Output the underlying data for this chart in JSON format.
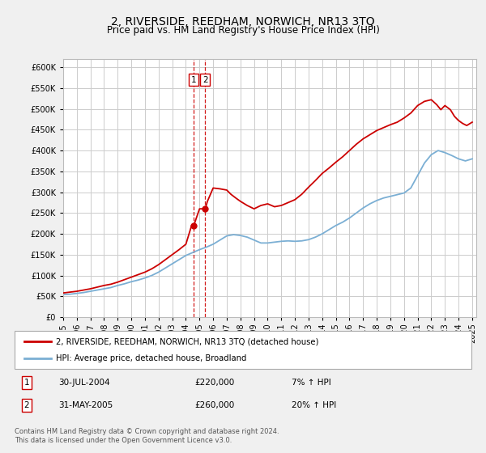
{
  "title": "2, RIVERSIDE, REEDHAM, NORWICH, NR13 3TQ",
  "subtitle": "Price paid vs. HM Land Registry's House Price Index (HPI)",
  "legend_line1": "2, RIVERSIDE, REEDHAM, NORWICH, NR13 3TQ (detached house)",
  "legend_line2": "HPI: Average price, detached house, Broadland",
  "transaction1_label": "1",
  "transaction1_date": "30-JUL-2004",
  "transaction1_price": "£220,000",
  "transaction1_hpi": "7% ↑ HPI",
  "transaction2_label": "2",
  "transaction2_date": "31-MAY-2005",
  "transaction2_price": "£260,000",
  "transaction2_hpi": "20% ↑ HPI",
  "footer": "Contains HM Land Registry data © Crown copyright and database right 2024.\nThis data is licensed under the Open Government Licence v3.0.",
  "red_color": "#cc0000",
  "blue_color": "#7bafd4",
  "background_color": "#f0f0f0",
  "plot_bg_color": "#ffffff",
  "grid_color": "#cccccc",
  "ylim": [
    0,
    620000
  ],
  "yticks": [
    0,
    50000,
    100000,
    150000,
    200000,
    250000,
    300000,
    350000,
    400000,
    450000,
    500000,
    550000,
    600000
  ],
  "hpi_years": [
    1995,
    1995.5,
    1996,
    1996.5,
    1997,
    1997.5,
    1998,
    1998.5,
    1999,
    1999.5,
    2000,
    2000.5,
    2001,
    2001.5,
    2002,
    2002.5,
    2003,
    2003.5,
    2004,
    2004.5,
    2005,
    2005.5,
    2006,
    2006.5,
    2007,
    2007.5,
    2008,
    2008.5,
    2009,
    2009.5,
    2010,
    2010.5,
    2011,
    2011.5,
    2012,
    2012.5,
    2013,
    2013.5,
    2014,
    2014.5,
    2015,
    2015.5,
    2016,
    2016.5,
    2017,
    2017.5,
    2018,
    2018.5,
    2019,
    2019.5,
    2020,
    2020.5,
    2021,
    2021.5,
    2022,
    2022.5,
    2023,
    2023.5,
    2024,
    2024.5,
    2025
  ],
  "hpi_values": [
    54000,
    55000,
    57000,
    59000,
    62000,
    65000,
    68000,
    71000,
    76000,
    80000,
    85000,
    89000,
    94000,
    100000,
    108000,
    118000,
    128000,
    138000,
    148000,
    155000,
    162000,
    168000,
    175000,
    185000,
    195000,
    198000,
    196000,
    192000,
    185000,
    178000,
    178000,
    180000,
    182000,
    183000,
    182000,
    183000,
    186000,
    192000,
    200000,
    210000,
    220000,
    228000,
    238000,
    250000,
    262000,
    272000,
    280000,
    286000,
    290000,
    294000,
    298000,
    310000,
    340000,
    370000,
    390000,
    400000,
    395000,
    388000,
    380000,
    375000,
    380000
  ],
  "red_years": [
    1995,
    1995.5,
    1996,
    1996.5,
    1997,
    1997.5,
    1998,
    1998.5,
    1999,
    1999.5,
    2000,
    2000.5,
    2001,
    2001.5,
    2002,
    2002.5,
    2003,
    2003.5,
    2004,
    2004.42,
    2004.58,
    2005,
    2005.42,
    2005.58,
    2006,
    2006.5,
    2007,
    2007.3,
    2007.7,
    2008,
    2008.5,
    2009,
    2009.5,
    2010,
    2010.5,
    2011,
    2011.5,
    2012,
    2012.5,
    2013,
    2013.5,
    2014,
    2014.5,
    2015,
    2015.5,
    2016,
    2016.5,
    2017,
    2017.5,
    2018,
    2018.5,
    2019,
    2019.5,
    2020,
    2020.5,
    2021,
    2021.5,
    2022,
    2022.4,
    2022.7,
    2023,
    2023.4,
    2023.7,
    2024,
    2024.3,
    2024.6,
    2025
  ],
  "red_values": [
    58000,
    60000,
    62000,
    65000,
    68000,
    72000,
    76000,
    79000,
    84000,
    90000,
    96000,
    102000,
    108000,
    116000,
    126000,
    138000,
    150000,
    162000,
    175000,
    220000,
    220000,
    260000,
    260000,
    278000,
    310000,
    308000,
    305000,
    295000,
    285000,
    278000,
    268000,
    260000,
    268000,
    272000,
    265000,
    268000,
    275000,
    282000,
    295000,
    312000,
    328000,
    345000,
    358000,
    372000,
    385000,
    400000,
    415000,
    428000,
    438000,
    448000,
    455000,
    462000,
    468000,
    478000,
    490000,
    508000,
    518000,
    522000,
    510000,
    498000,
    508000,
    498000,
    482000,
    472000,
    465000,
    460000,
    468000
  ],
  "transaction1_x": 2004.58,
  "transaction1_y": 220000,
  "transaction2_x": 2005.42,
  "transaction2_y": 260000,
  "vline_x1": 2004.58,
  "vline_x2": 2005.42,
  "xmin": 1995,
  "xmax": 2025.3
}
